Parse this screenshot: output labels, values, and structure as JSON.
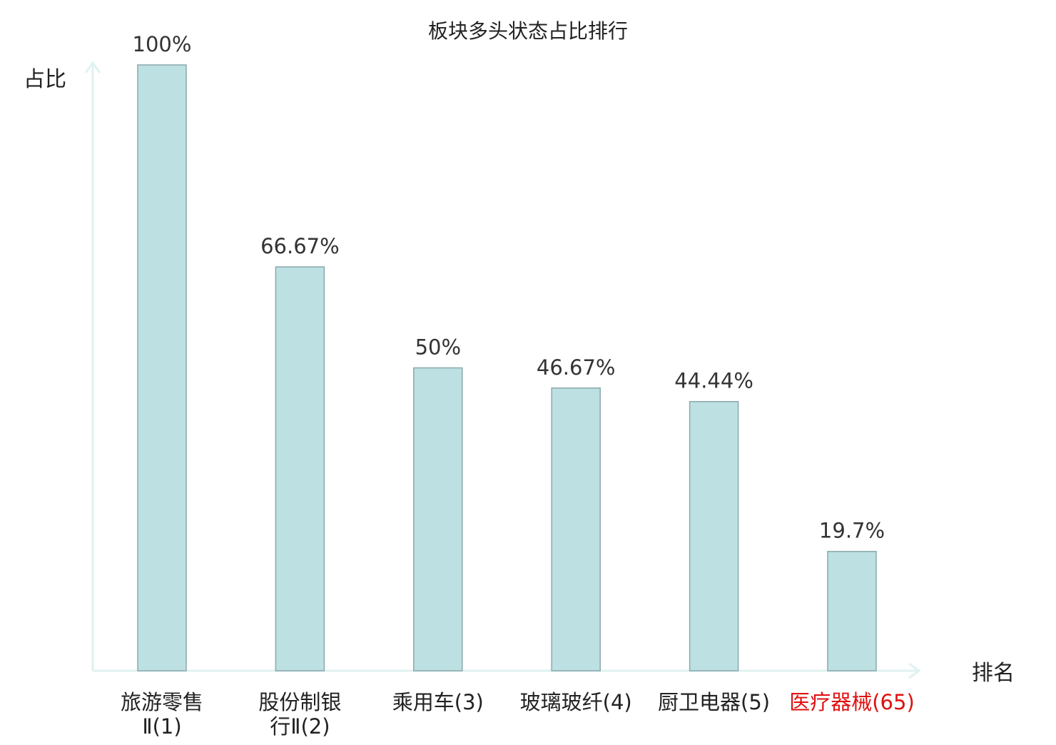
{
  "chart_data": {
    "type": "bar",
    "title": "板块多头状态占比排行",
    "ylabel": "占比",
    "xlabel": "排名",
    "ylim": [
      0,
      100
    ],
    "grid": false,
    "categories": [
      {
        "name_lines": [
          "旅游零售",
          "Ⅱ(1)"
        ],
        "highlight": false
      },
      {
        "name_lines": [
          "股份制银",
          "行Ⅱ(2)"
        ],
        "highlight": false
      },
      {
        "name_lines": [
          "乘用车(3)"
        ],
        "highlight": false
      },
      {
        "name_lines": [
          "玻璃玻纤(4)"
        ],
        "highlight": false
      },
      {
        "name_lines": [
          "厨卫电器(5)"
        ],
        "highlight": false
      },
      {
        "name_lines": [
          "医疗器械(65)"
        ],
        "highlight": true
      }
    ],
    "values": [
      100,
      66.67,
      50,
      46.67,
      44.44,
      19.7
    ],
    "value_labels": [
      "100%",
      "66.67%",
      "50%",
      "46.67%",
      "44.44%",
      "19.7%"
    ],
    "colors": {
      "bar_fill": "#bde0e2",
      "bar_stroke": "#8aa8aa",
      "axis": "#dff2f0",
      "text": "#333333",
      "title": "#222222",
      "highlight": "#e01010"
    }
  }
}
